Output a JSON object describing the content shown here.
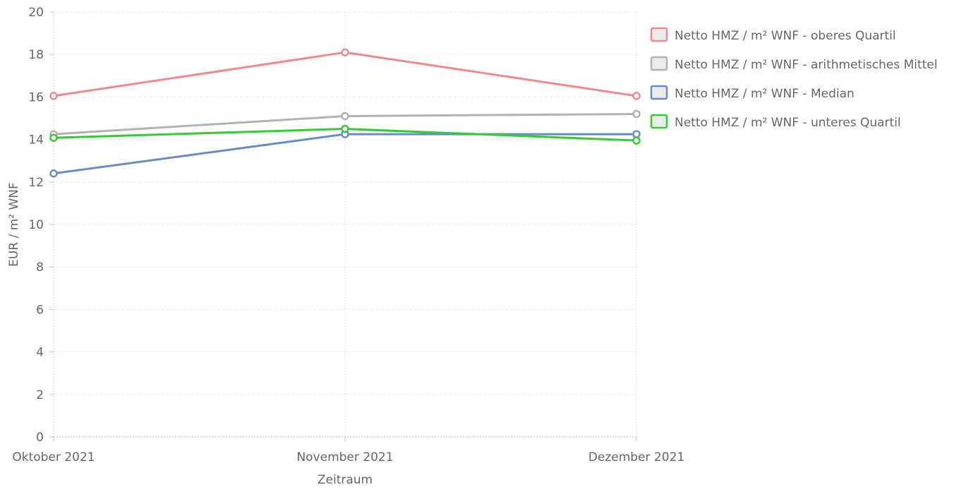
{
  "chart_data": {
    "type": "line",
    "categories": [
      "Oktober 2021",
      "November 2021",
      "Dezember 2021"
    ],
    "xlabel": "Zeitraum",
    "ylabel": "EUR / m² WNF",
    "ylim": [
      0,
      20
    ],
    "yticks": [
      0,
      2,
      4,
      6,
      8,
      10,
      12,
      14,
      16,
      18,
      20
    ],
    "grid": true,
    "legend_position": "right",
    "series": [
      {
        "name": "Netto HMZ / m² WNF - oberes Quartil",
        "values": [
          16.05,
          18.1,
          16.05
        ],
        "color": "#f08a8a"
      },
      {
        "name": "Netto HMZ / m² WNF - arithmetisches Mittel",
        "values": [
          14.25,
          15.1,
          15.2
        ],
        "color": "#b3b3b3"
      },
      {
        "name": "Netto HMZ / m² WNF - Median",
        "values": [
          12.4,
          14.25,
          14.25
        ],
        "color": "#6a8bc8"
      },
      {
        "name": "Netto HMZ / m² WNF - unteres Quartil",
        "values": [
          14.08,
          14.5,
          13.95
        ],
        "color": "#33cc33"
      }
    ]
  }
}
